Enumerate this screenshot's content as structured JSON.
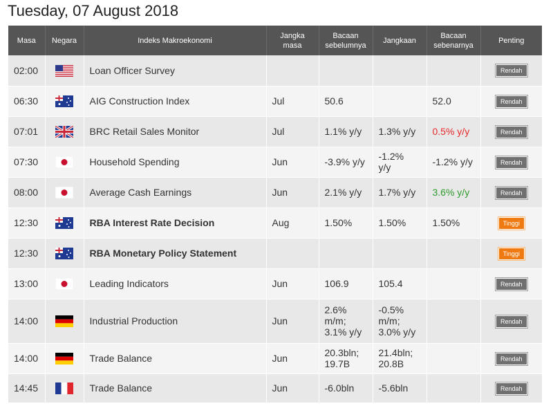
{
  "title": "Tuesday, 07 August 2018",
  "headers": {
    "time": "Masa",
    "country": "Negara",
    "indicator": "Indeks Makroekonomi",
    "period_l1": "Jangka",
    "period_l2": "masa",
    "previous_l1": "Bacaan",
    "previous_l2": "sebelumnya",
    "forecast": "Jangkaan",
    "actual_l1": "Bacaan",
    "actual_l2": "sebenarnya",
    "importance": "Penting"
  },
  "colors": {
    "header_bg": "#555555",
    "low_badge": "#707070",
    "high_badge": "#f07a12",
    "actual_worse": "#e8292b",
    "actual_better": "#2e9b2e"
  },
  "rows": [
    {
      "time": "02:00",
      "flag": "us-flag-icon",
      "country": "United States",
      "indicator": "Loan Officer Survey",
      "period": "",
      "previous": "",
      "forecast": "",
      "actual": "",
      "importance": "Rendah"
    },
    {
      "time": "06:30",
      "flag": "au-flag-icon",
      "country": "Australia",
      "indicator": "AIG Construction Index",
      "period": "Jul",
      "previous": "50.6",
      "forecast": "",
      "actual": "52.0",
      "importance": "Rendah"
    },
    {
      "time": "07:01",
      "flag": "gb-flag-icon",
      "country": "United Kingdom",
      "indicator": "BRC Retail Sales Monitor",
      "period": "Jul",
      "previous": "1.1% y/y",
      "forecast": "1.3% y/y",
      "actual": "0.5% y/y",
      "importance": "Rendah"
    },
    {
      "time": "07:30",
      "flag": "jp-flag-icon",
      "country": "Japan",
      "indicator": "Household Spending",
      "period": "Jun",
      "previous": "-3.9% y/y",
      "forecast_l1": "-1.2%",
      "forecast_l2": "y/y",
      "actual": "-1.2% y/y",
      "importance": "Rendah"
    },
    {
      "time": "08:00",
      "flag": "jp-flag-icon",
      "country": "Japan",
      "indicator": "Average Cash Earnings",
      "period": "Jun",
      "previous": "2.1% y/y",
      "forecast": "1.7% y/y",
      "actual": "3.6% y/y",
      "importance": "Rendah"
    },
    {
      "time": "12:30",
      "flag": "au-flag-icon",
      "country": "Australia",
      "indicator": "RBA Interest Rate Decision",
      "period": "Aug",
      "previous": "1.50%",
      "forecast": "1.50%",
      "actual": "1.50%",
      "importance": "Tinggi"
    },
    {
      "time": "12:30",
      "flag": "au-flag-icon",
      "country": "Australia",
      "indicator": "RBA Monetary Policy Statement",
      "period": "",
      "previous": "",
      "forecast": "",
      "actual": "",
      "importance": "Tinggi"
    },
    {
      "time": "13:00",
      "flag": "jp-flag-icon",
      "country": "Japan",
      "indicator": "Leading Indicators",
      "period": "Jun",
      "previous": "106.9",
      "forecast": "105.4",
      "actual": "",
      "importance": "Rendah"
    },
    {
      "time": "14:00",
      "flag": "de-flag-icon",
      "country": "Germany",
      "indicator": "Industrial Production",
      "period": "Jun",
      "previous_l1": "2.6%",
      "previous_l2": "m/m;",
      "previous_l3": "3.1% y/y",
      "forecast_l1": "-0.5%",
      "forecast_l2": "m/m;",
      "forecast_l3": "3.0% y/y",
      "actual": "",
      "importance": "Rendah"
    },
    {
      "time": "14:00",
      "flag": "de-flag-icon",
      "country": "Germany",
      "indicator": "Trade Balance",
      "period": "Jun",
      "previous_l1": "20.3bln;",
      "previous_l2": "19.7B",
      "forecast_l1": "21.4bln;",
      "forecast_l2": "20.8B",
      "actual": "",
      "importance": "Rendah"
    },
    {
      "time": "14:45",
      "flag": "fr-flag-icon",
      "country": "France",
      "indicator": "Trade Balance",
      "period": "Jun",
      "previous": "-6.0bln",
      "forecast": "-5.6bln",
      "actual": "",
      "importance": "Rendah"
    }
  ]
}
